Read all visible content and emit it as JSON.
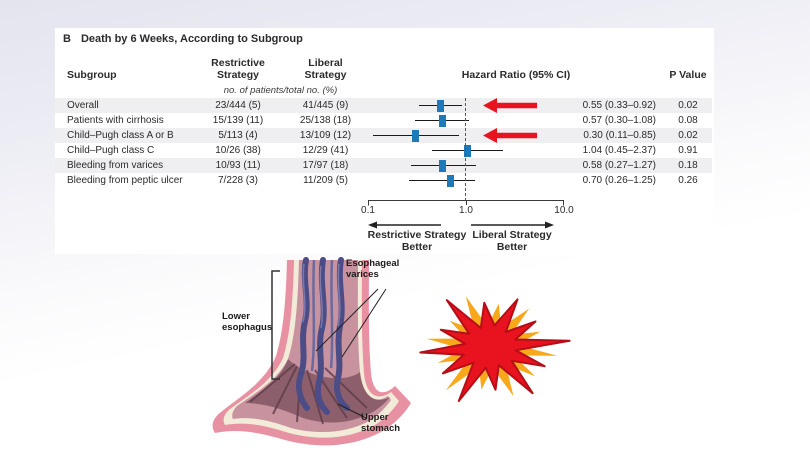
{
  "colors": {
    "marker_blue": "#1d79b8",
    "arrow_red": "#e8131f",
    "arrow_red_dark": "#b50e17",
    "burst_orange": "#f7a81b",
    "row_stripe": "#efeff1"
  },
  "figure": {
    "panel_label": "B",
    "title": "Death by 6 Weeks, According to Subgroup",
    "col_subgroup": "Subgroup",
    "col_restrictive_1": "Restrictive",
    "col_restrictive_2": "Strategy",
    "col_liberal_1": "Liberal",
    "col_liberal_2": "Strategy",
    "col_hazard": "Hazard Ratio (95% CI)",
    "col_pvalue": "P Value",
    "units_note": "no. of patients/total no. (%)",
    "left_better_1": "Restrictive Strategy",
    "left_better_2": "Better",
    "right_better_1": "Liberal Strategy",
    "right_better_2": "Better"
  },
  "chart_data": {
    "type": "forest",
    "title": "Death by 6 Weeks, According to Subgroup",
    "x_scale": "log",
    "x_ticks": [
      0.1,
      1.0,
      10.0
    ],
    "x_tick_labels": [
      "0.1",
      "1.0",
      "10.0"
    ],
    "reference_line": 1.0,
    "legend_left": "Restrictive Strategy Better",
    "legend_right": "Liberal Strategy Better",
    "rows": [
      {
        "subgroup": "Overall",
        "restrictive": "23/444 (5)",
        "liberal": "41/445 (9)",
        "hr": 0.55,
        "ci_low": 0.33,
        "ci_high": 0.92,
        "hr_text": "0.55 (0.33–0.92)",
        "p_value": "0.02",
        "arrow": true
      },
      {
        "subgroup": "Patients with cirrhosis",
        "restrictive": "15/139 (11)",
        "liberal": "25/138 (18)",
        "hr": 0.57,
        "ci_low": 0.3,
        "ci_high": 1.08,
        "hr_text": "0.57 (0.30–1.08)",
        "p_value": "0.08",
        "arrow": false
      },
      {
        "subgroup": "Child–Pugh class A or B",
        "restrictive": "5/113 (4)",
        "liberal": "13/109 (12)",
        "hr": 0.3,
        "ci_low": 0.11,
        "ci_high": 0.85,
        "hr_text": "0.30 (0.11–0.85)",
        "p_value": "0.02",
        "arrow": true
      },
      {
        "subgroup": "Child–Pugh class C",
        "restrictive": "10/26 (38)",
        "liberal": "12/29 (41)",
        "hr": 1.04,
        "ci_low": 0.45,
        "ci_high": 2.37,
        "hr_text": "1.04 (0.45–2.37)",
        "p_value": "0.91",
        "arrow": false
      },
      {
        "subgroup": "Bleeding from varices",
        "restrictive": "10/93 (11)",
        "liberal": "17/97 (18)",
        "hr": 0.58,
        "ci_low": 0.27,
        "ci_high": 1.27,
        "hr_text": "0.58 (0.27–1.27)",
        "p_value": "0.18",
        "arrow": false
      },
      {
        "subgroup": "Bleeding from peptic ulcer",
        "restrictive": "7/228 (3)",
        "liberal": "11/209 (5)",
        "hr": 0.7,
        "ci_low": 0.26,
        "ci_high": 1.25,
        "hr_text": "0.70 (0.26–1.25)",
        "p_value": "0.26",
        "arrow": false
      }
    ]
  },
  "illustration": {
    "label_varices": "Esophageal varices",
    "label_esophagus": "Lower esophagus",
    "label_stomach": "Upper stomach"
  }
}
